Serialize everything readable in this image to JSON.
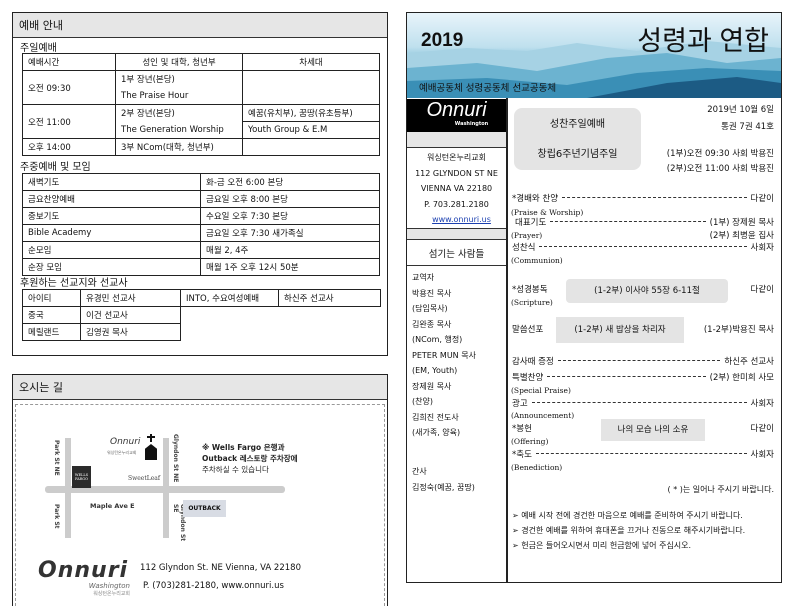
{
  "left": {
    "worship_header": "예배 안내",
    "sunday_title": "주일예배",
    "sunday_table": {
      "headers": [
        "예배시간",
        "성인 및 대학, 청년부",
        "차세대"
      ],
      "rows": [
        {
          "time": "오전 09:30",
          "adult": [
            "1부 장년(본당)",
            "The Praise Hour"
          ],
          "next": [
            "",
            ""
          ]
        },
        {
          "time": "오전 11:00",
          "adult": [
            "2부 장년(본당)",
            "The Generation Worship"
          ],
          "next": [
            "예꿈(유치부), 꿈땅(유초등부)",
            "Youth Group & E.M"
          ]
        },
        {
          "time": "오후 14:00",
          "adult": [
            "3부 NCom(대학, 청년부)"
          ],
          "next": [
            ""
          ]
        }
      ]
    },
    "weekday_title": "주중예배 및 모임",
    "weekday_table": [
      [
        "새벽기도",
        "화-금 오전 6:00 본당"
      ],
      [
        "금요찬양예배",
        "금요일 오후 8:00 본당"
      ],
      [
        "중보기도",
        "수요일 오후 7:30 본당"
      ],
      [
        "Bible Academy",
        "금요일 오후 7:30 새가족실"
      ],
      [
        "순모임",
        "매월 2, 4주"
      ],
      [
        "순장 모임",
        "매월 1주 오후 12시 50분"
      ]
    ],
    "mission_title": "후원하는 선교지와 선교사",
    "mission_table": [
      [
        "아이티",
        "유경민 선교사",
        "INTO, 수요여성예배",
        "하신주 선교사"
      ],
      [
        "중국",
        "이건 선교사"
      ],
      [
        "메릴랜드",
        "김영권 목사"
      ]
    ],
    "directions_header": "오시는 길",
    "map": {
      "streets": [
        "Park St NE",
        "Park St",
        "Glyndon St NE",
        "Glyndon St SE",
        "Maple Ave E"
      ],
      "landmarks": [
        "Onnuri",
        "워싱턴온누리교회",
        "WELLS FARGO",
        "SweetLeaf",
        "OUTBACK"
      ],
      "parking_note": [
        "※ Wells Fargo 은행과",
        "Outback 레스토랑 주차장에",
        "주차하실 수 있습니다"
      ]
    },
    "footer": {
      "logo": "Onnuri",
      "logo_sub": "Washington",
      "logo_kr": "워싱턴온누리교회",
      "address": "112 Glyndon St. NE Vienna, VA 22180",
      "contact": "P. (703)281-2180, www.onnuri.us"
    }
  },
  "right": {
    "banner": {
      "year": "2019",
      "title": "성령과 연합",
      "subtitle": "예배공동체 성령공동체 선교공동체"
    },
    "logo": {
      "name": "Onnuri",
      "sub": "Washington"
    },
    "church": [
      "워싱턴온누리교회",
      "112 GLYNDON ST NE",
      "VIENNA VA 22180",
      "P. 703.281.2180"
    ],
    "website": "www.onnuri.us",
    "staff_title": "섬기는 사람들",
    "staff": [
      "교역자",
      "박용진 목사",
      "(담임목사)",
      "김완종 목사",
      "(NCom, 행정)",
      "PETER MUN 목사",
      "(EM, Youth)",
      "장제원 목사",
      "(찬양)",
      "김희진 전도사",
      "(새가족, 양육)"
    ],
    "secretary": [
      "간사",
      "김정숙(예꿈, 꿈땅)"
    ],
    "service_box": [
      "성찬주일예배",
      "창립6주년기념주일"
    ],
    "date": "2019년 10월 6일",
    "volume": "통권 7권 41호",
    "hosts": [
      "(1부)오전 09:30 사회 박용진",
      "(2부)오전 11:00 사회 박용진"
    ],
    "order": {
      "worship": {
        "label": "*경배와 찬양",
        "en": "(Praise & Worship)",
        "who": "다같이"
      },
      "prayer": {
        "label": "대표기도",
        "en": "(Prayer)",
        "who1": "(1부) 장제원 목사",
        "who2": "(2부) 최병윤 집사"
      },
      "communion": {
        "label": "성찬식",
        "en": "(Communion)",
        "who": "사회자"
      },
      "scripture": {
        "label": "*성경봉독",
        "en": "(Scripture)",
        "text": "(1-2부) 이사야 55장 6-11절",
        "who": "다같이"
      },
      "sermon": {
        "label": "말씀선포",
        "text": "(1-2부) 새 밥상을 차리자",
        "who": "(1-2부)박용진 목사"
      },
      "testimony": {
        "label": "감사때 증정",
        "who": "하신주 선교사"
      },
      "special": {
        "label": "특별찬양",
        "en": "(Special Praise)",
        "who": "(2부) 한미희 사모"
      },
      "announce": {
        "label": "광고",
        "en": "(Announcement)",
        "who": "사회자"
      },
      "offering": {
        "label": "*봉헌",
        "en": "(Offering)",
        "text": "나의 모습 나의 소유",
        "who": "다같이"
      },
      "benediction": {
        "label": "*축도",
        "en": "(Benediction)",
        "who": "사회자"
      }
    },
    "stand_note": "( * )는 일어나 주시기 바랍니다.",
    "notes": [
      "예배 시작 전에 경건한 마음으로 예배를 준비하여 주시기 바랍니다.",
      "경건한 예배를 위하여 휴대폰을 끄거나 진동으로 해주시기바랍니다.",
      "헌금은 들어오시면서 미리 헌금함에 넣어 주십시오."
    ]
  },
  "colors": {
    "header_gray": "#e6e6e6",
    "pill_gray": "#e4e4e4",
    "banner_blue": "#2f86ac",
    "link": "#1a3fb0"
  }
}
